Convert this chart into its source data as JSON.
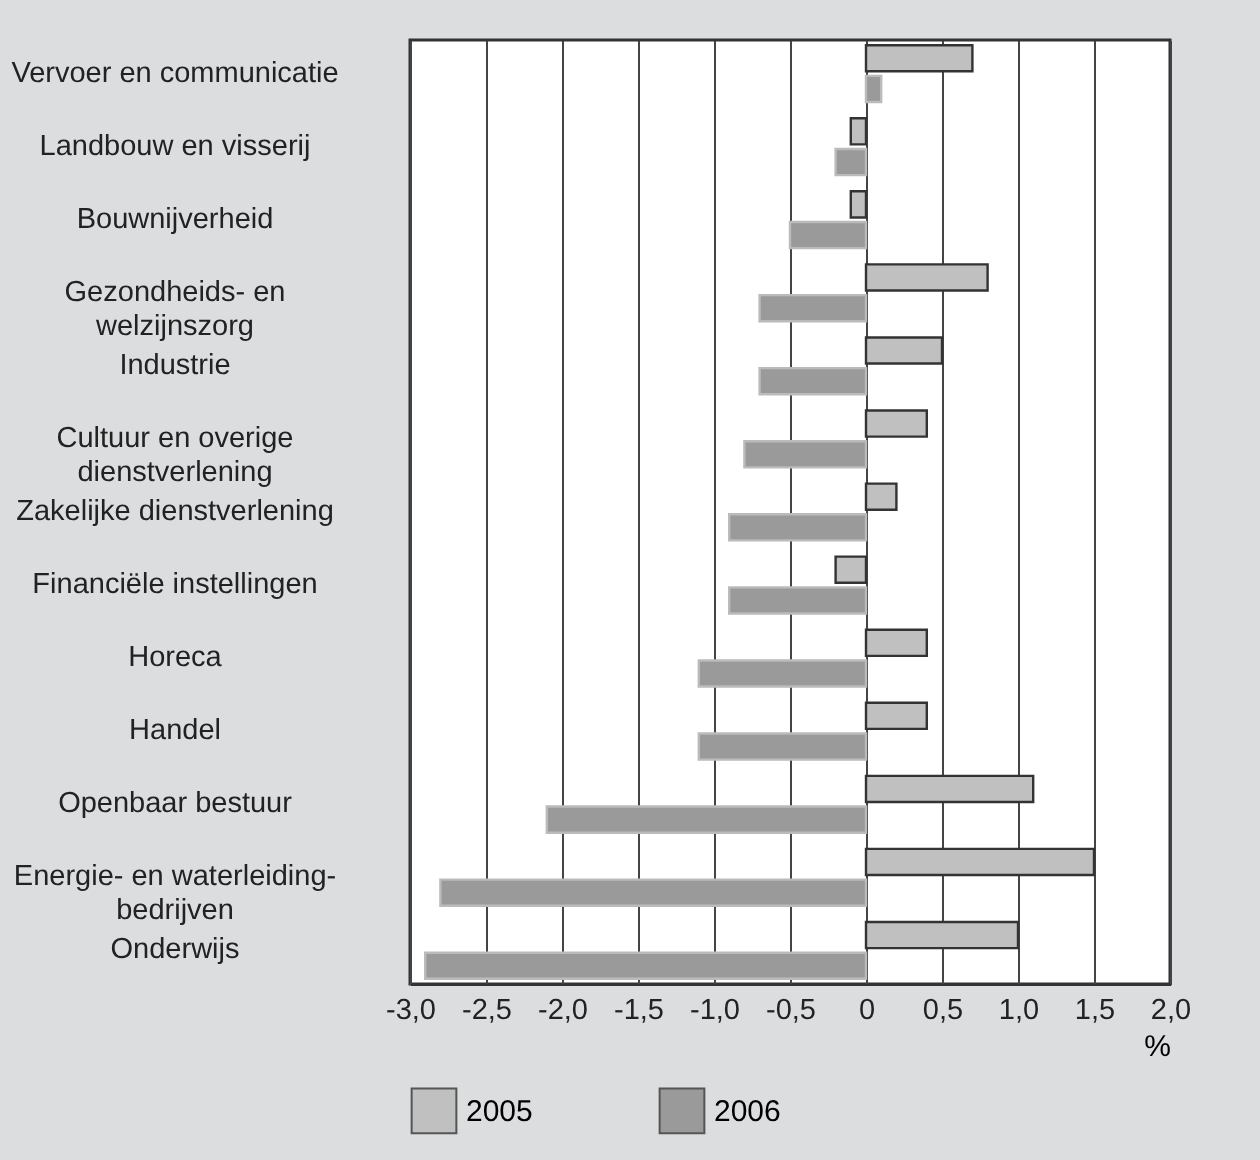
{
  "chart_data": {
    "type": "bar",
    "orientation": "horizontal",
    "categories": [
      "Vervoer en communicatie",
      "Landbouw en visserij",
      "Bouwnijverheid",
      "Gezondheids- en\nwelzijnszorg",
      "Industrie",
      "Cultuur en overige\ndienstverlening",
      "Zakelijke dienstverlening",
      "Financiële instellingen",
      "Horeca",
      "Handel",
      "Openbaar bestuur",
      "Energie- en waterleiding-\nbedrijven",
      "Onderwijs"
    ],
    "series": [
      {
        "name": "2005",
        "color": "#c0c0c0",
        "values": [
          0.7,
          -0.1,
          -0.1,
          0.8,
          0.5,
          0.4,
          0.2,
          -0.2,
          0.4,
          0.4,
          1.1,
          1.5,
          1.0
        ]
      },
      {
        "name": "2006",
        "color": "#9a9a9a",
        "values": [
          0.1,
          -0.2,
          -0.5,
          -0.7,
          -0.7,
          -0.8,
          -0.9,
          -0.9,
          -1.1,
          -1.1,
          -2.1,
          -2.8,
          -2.9
        ]
      }
    ],
    "xlabel": "%",
    "xlim": [
      -3.0,
      2.0
    ],
    "xticks": [
      {
        "value": -3.0,
        "label": "-3,0"
      },
      {
        "value": -2.5,
        "label": "-2,5"
      },
      {
        "value": -2.0,
        "label": "-2,0"
      },
      {
        "value": -1.5,
        "label": "-1,5"
      },
      {
        "value": -1.0,
        "label": "-1,0"
      },
      {
        "value": -0.5,
        "label": "-0,5"
      },
      {
        "value": 0,
        "label": "0"
      },
      {
        "value": 0.5,
        "label": "0,5"
      },
      {
        "value": 1.0,
        "label": "1,0"
      },
      {
        "value": 1.5,
        "label": "1,5"
      },
      {
        "value": 2.0,
        "label": "2,0"
      }
    ],
    "grid": "x",
    "legend": "bottom"
  }
}
